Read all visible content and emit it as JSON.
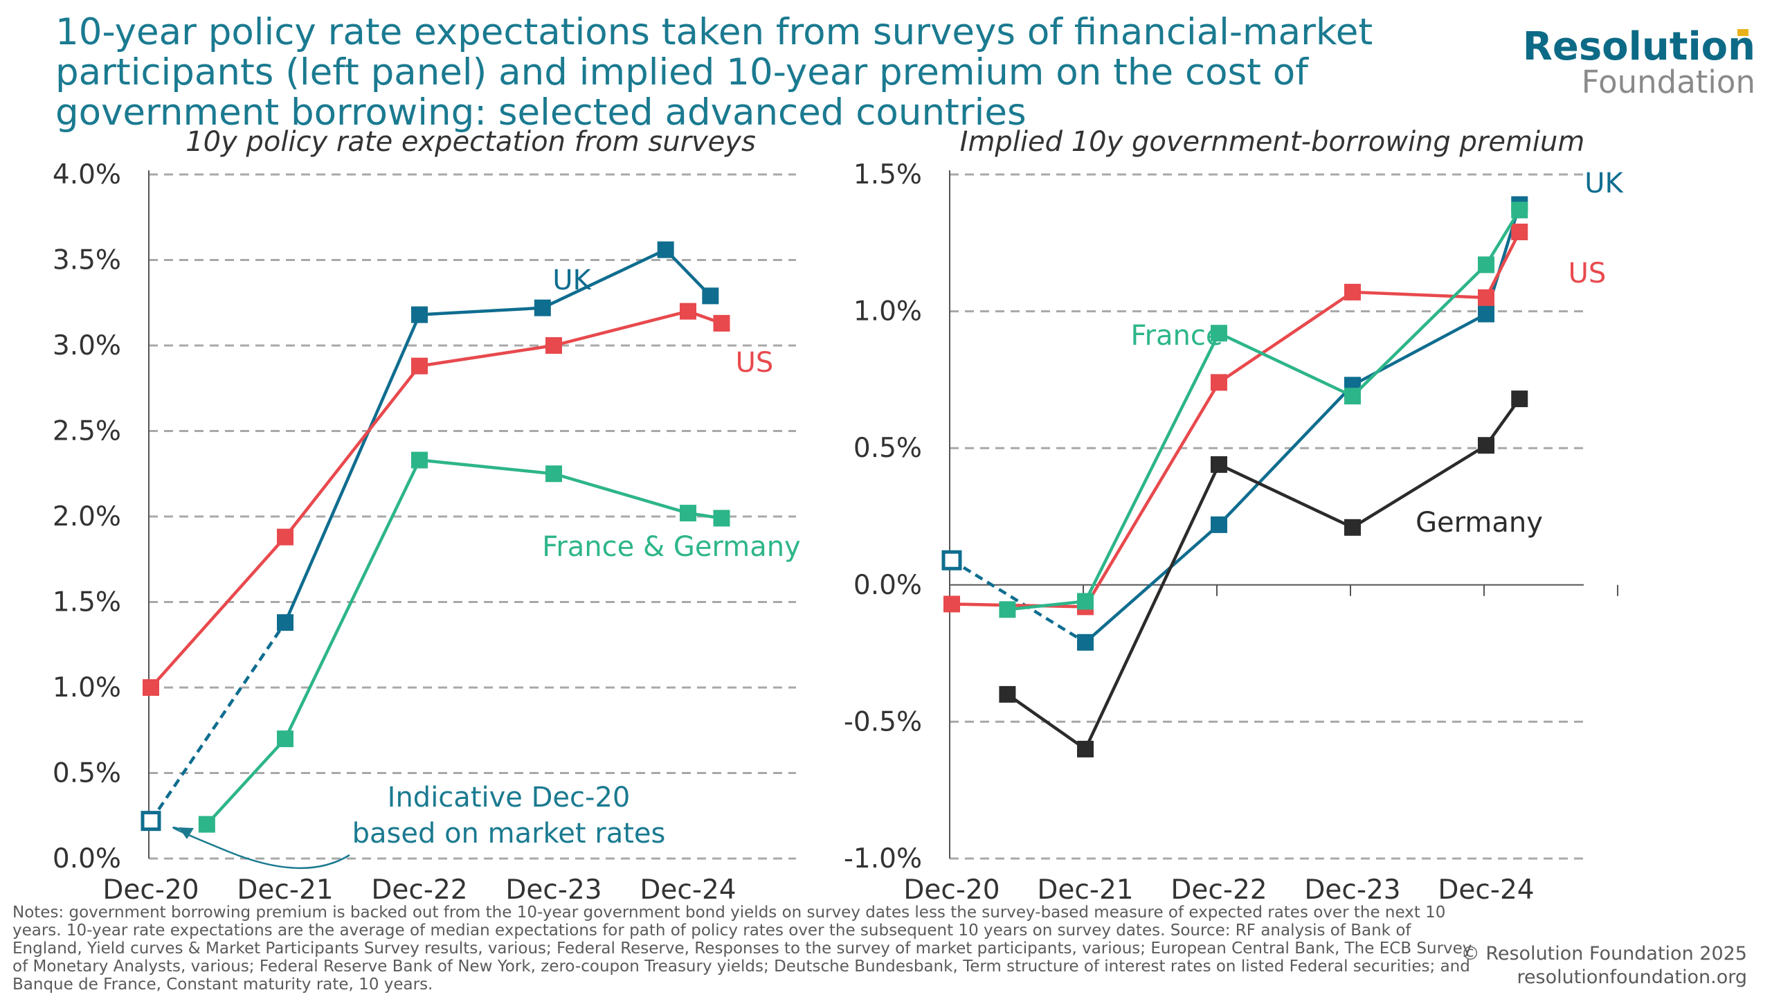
{
  "title": "10-year policy rate expectations taken from surveys of financial-market participants (left panel) and implied 10-year premium on the cost of government borrowing: selected advanced countries",
  "logo": {
    "line1": "Resolution",
    "line2": "Foundation"
  },
  "notes": "Notes: government borrowing premium is backed out from the 10-year government bond yields on survey dates less the survey-based measure of expected rates over the next 10 years. 10-year rate expectations are the average of median expectations for path of policy rates over the subsequent 10 years on survey dates. Source: RF analysis of Bank of England, Yield curves & Market Participants Survey results, various; Federal Reserve, Responses to the survey of market participants, various; European Central Bank, The ECB Survey of Monetary Analysts, various; Federal Reserve Bank of New York, zero-coupon Treasury yields; Deutsche Bundesbank, Term structure of interest rates on listed Federal securities; and Banque de France, Constant maturity rate, 10 years.",
  "copyright": {
    "line1": "© Resolution Foundation 2025",
    "line2": "resolutionfoundation.org"
  },
  "chart_data": [
    {
      "type": "line",
      "title": "10y policy rate expectation from surveys",
      "x_ticks": [
        "Dec-20",
        "Dec-21",
        "Dec-22",
        "Dec-23",
        "Dec-24"
      ],
      "y_ticks": [
        "0.0%",
        "0.5%",
        "1.0%",
        "1.5%",
        "2.0%",
        "2.5%",
        "3.0%",
        "3.5%",
        "4.0%"
      ],
      "ylim": [
        0,
        4.0
      ],
      "grid": "horizontal dashed",
      "series": [
        {
          "name": "UK",
          "color": "#0f6d8f",
          "x": [
            "2020-12",
            "2021-12",
            "2022-12",
            "2023-11",
            "2024-10",
            "2025-02"
          ],
          "values": [
            0.22,
            1.38,
            3.18,
            3.22,
            3.56,
            3.29
          ],
          "dashed_to_index": 1
        },
        {
          "name": "US",
          "color": "#e8494d",
          "x": [
            "2020-12",
            "2021-12",
            "2022-12",
            "2023-12",
            "2024-12",
            "2025-03"
          ],
          "values": [
            1.0,
            1.88,
            2.88,
            3.0,
            3.2,
            3.13
          ]
        },
        {
          "name": "France & Germany",
          "color": "#2db58a",
          "x": [
            "2021-05",
            "2021-12",
            "2022-12",
            "2023-12",
            "2024-12",
            "2025-03"
          ],
          "values": [
            0.2,
            0.7,
            2.33,
            2.25,
            2.02,
            1.99
          ]
        }
      ],
      "open_marker": {
        "series": "UK",
        "index": 0
      },
      "annotation": "Indicative Dec-20\nbased on market rates"
    },
    {
      "type": "line",
      "title": "Implied 10y government-borrowing premium",
      "x_ticks": [
        "Dec-20",
        "Dec-21",
        "Dec-22",
        "Dec-23",
        "Dec-24"
      ],
      "y_ticks": [
        "-1.0%",
        "-0.5%",
        "0.0%",
        "0.5%",
        "1.0%",
        "1.5%"
      ],
      "ylim": [
        -1.0,
        1.5
      ],
      "grid": "horizontal dashed",
      "series": [
        {
          "name": "UK",
          "color": "#0f6d8f",
          "x": [
            "2020-12",
            "2021-12",
            "2022-12",
            "2023-12",
            "2024-12",
            "2025-03"
          ],
          "values": [
            0.09,
            -0.21,
            0.22,
            0.73,
            0.99,
            1.39
          ],
          "dashed_to_index": 1
        },
        {
          "name": "US",
          "color": "#e8494d",
          "x": [
            "2020-12",
            "2021-12",
            "2022-12",
            "2023-12",
            "2024-12",
            "2025-03"
          ],
          "values": [
            -0.07,
            -0.08,
            0.74,
            1.07,
            1.05,
            1.29
          ]
        },
        {
          "name": "France",
          "color": "#2db58a",
          "x": [
            "2021-05",
            "2021-12",
            "2022-12",
            "2023-12",
            "2024-12",
            "2025-03"
          ],
          "values": [
            -0.09,
            -0.06,
            0.92,
            0.69,
            1.17,
            1.37
          ]
        },
        {
          "name": "Germany",
          "color": "#2b2b2b",
          "x": [
            "2021-05",
            "2021-12",
            "2022-12",
            "2023-12",
            "2024-12",
            "2025-03"
          ],
          "values": [
            -0.4,
            -0.6,
            0.44,
            0.21,
            0.51,
            0.68
          ]
        }
      ],
      "open_marker": {
        "series": "UK",
        "index": 0
      }
    }
  ]
}
